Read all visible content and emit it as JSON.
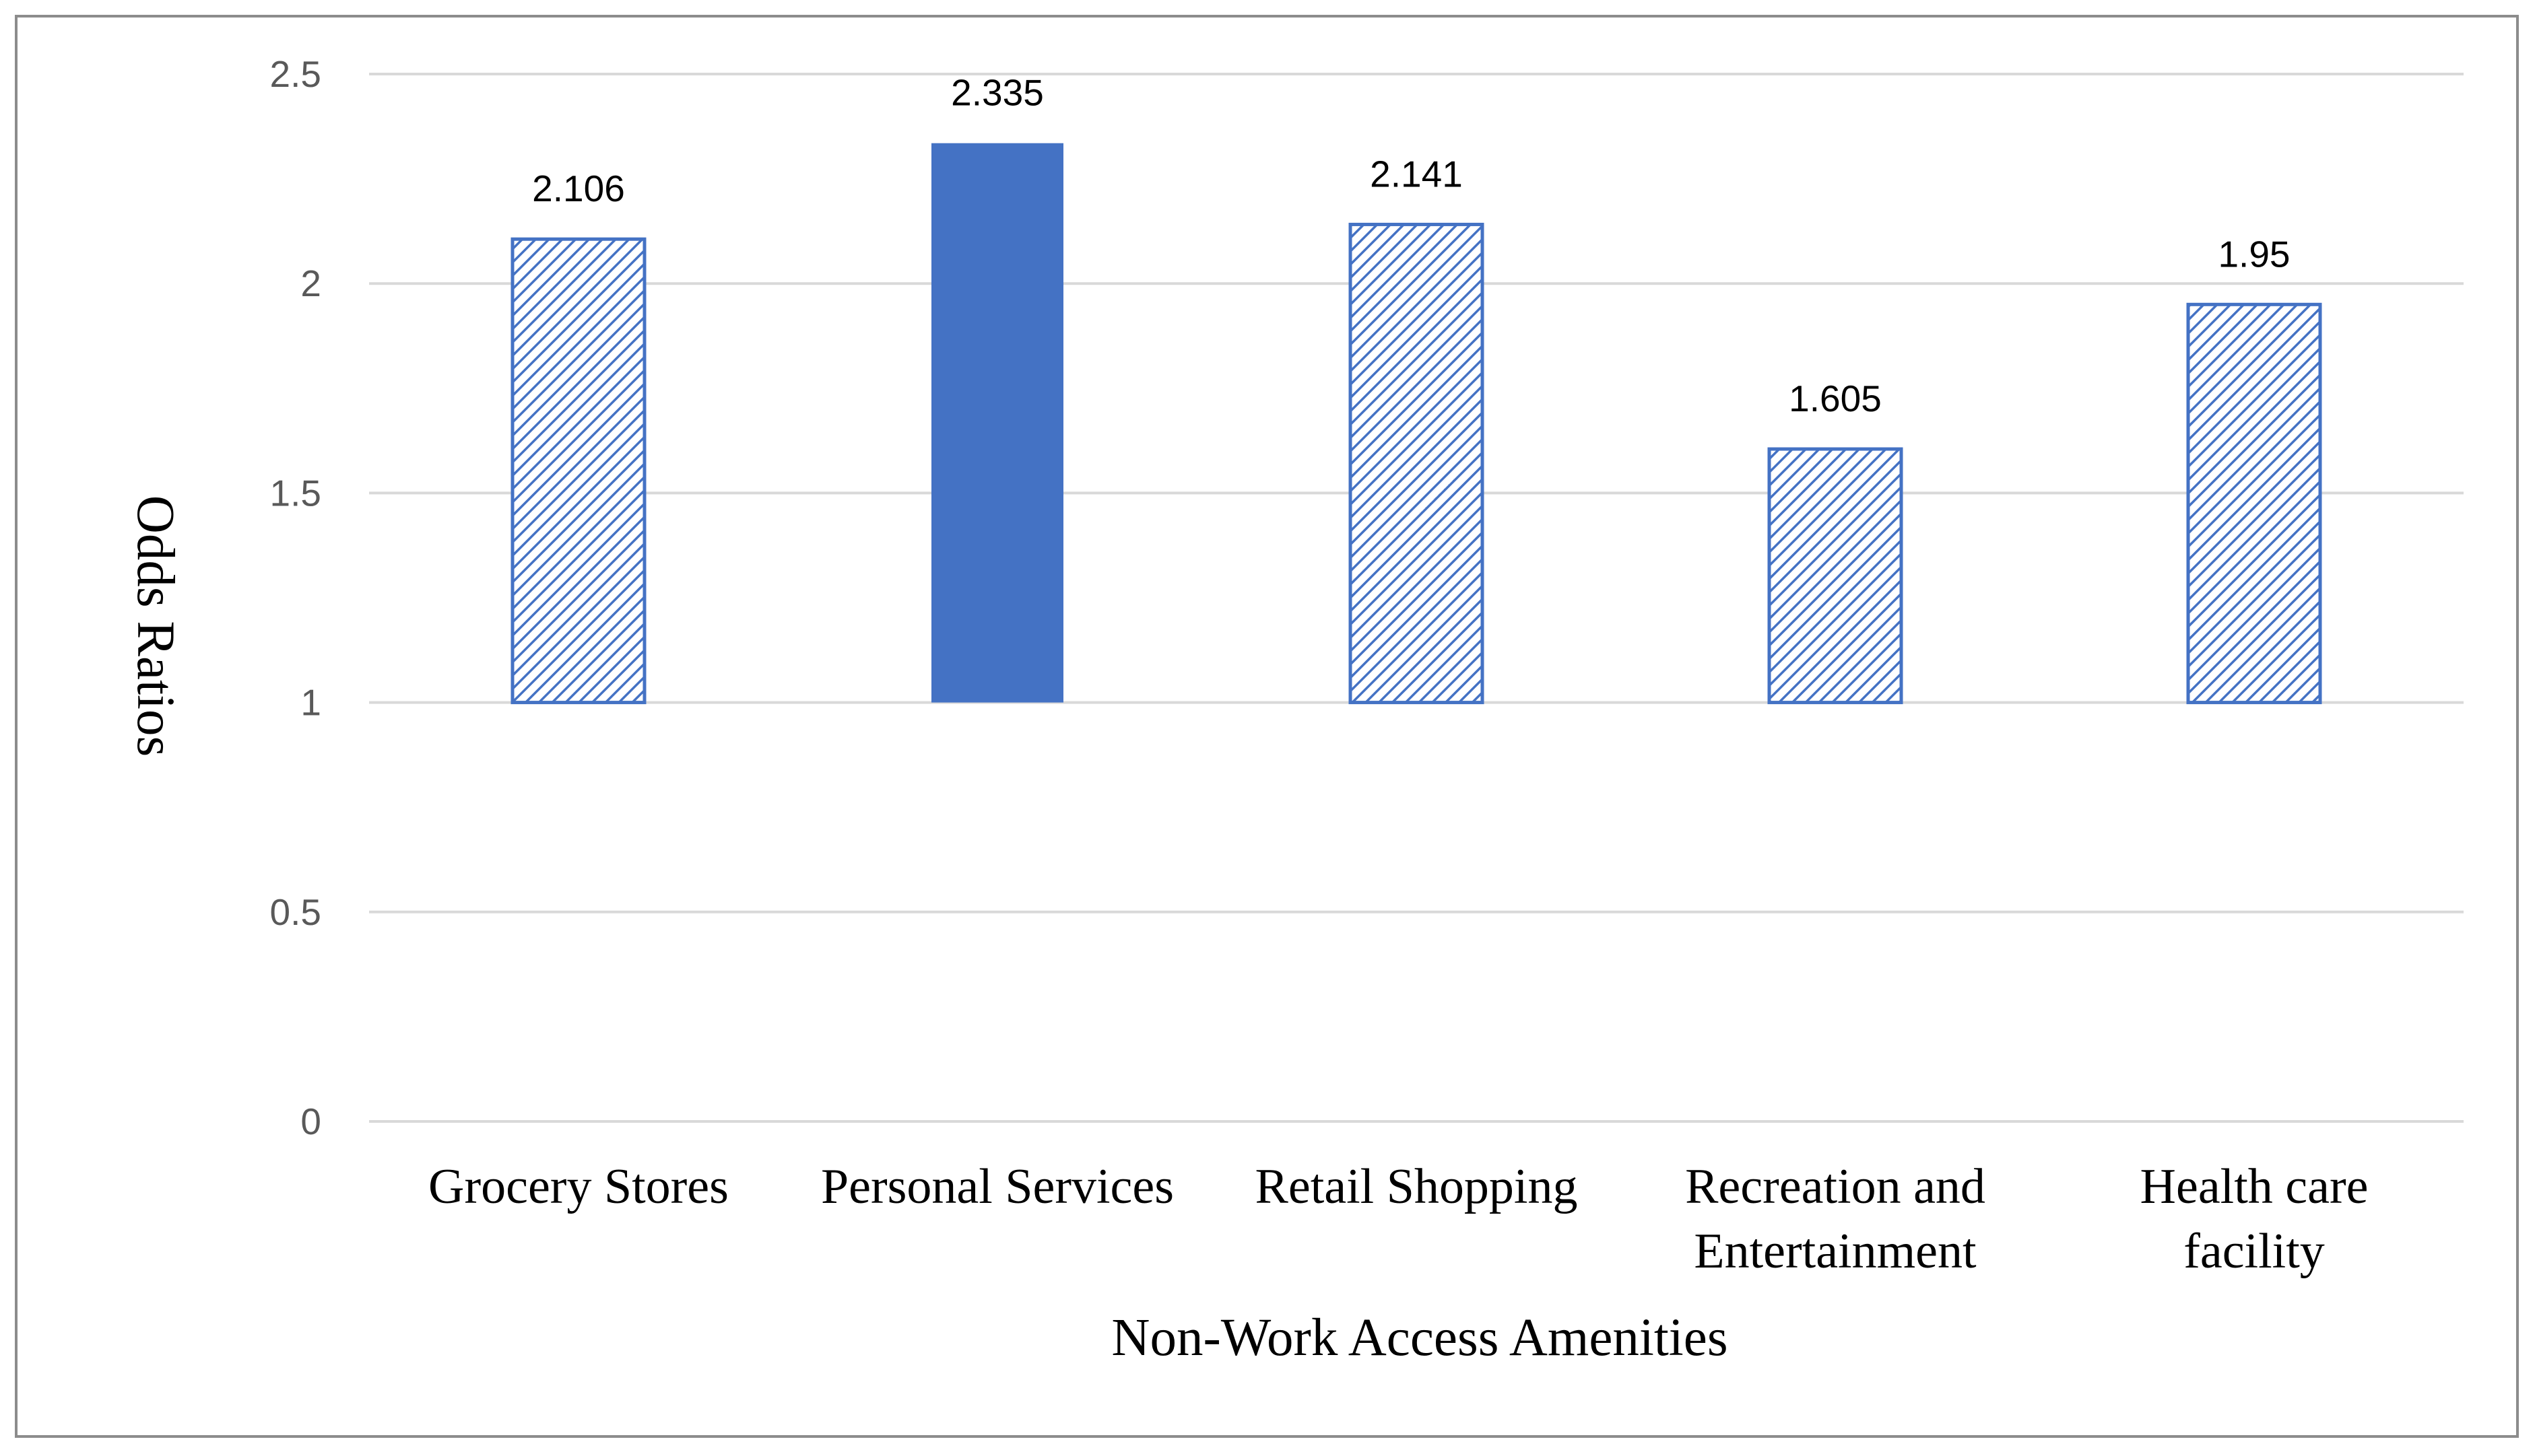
{
  "chart_data": {
    "type": "bar",
    "categories": [
      [
        "Grocery Stores"
      ],
      [
        "Personal Services"
      ],
      [
        "Retail Shopping"
      ],
      [
        "Recreation and",
        "Entertainment"
      ],
      [
        "Health care",
        "facility"
      ]
    ],
    "values": [
      2.106,
      2.335,
      2.141,
      1.605,
      1.95
    ],
    "data_labels": [
      "2.106",
      "2.335",
      "2.141",
      "1.605",
      "1.95"
    ],
    "bar_styles": [
      "hatched",
      "solid",
      "hatched",
      "hatched",
      "hatched"
    ],
    "baseline": 1,
    "ylim": [
      0,
      2.5
    ],
    "yticks": [
      0,
      0.5,
      1,
      1.5,
      2,
      2.5
    ],
    "ytick_labels": [
      "0",
      "0.5",
      "1",
      "1.5",
      "2",
      "2.5"
    ],
    "xlabel": "Non-Work Access Amenities",
    "ylabel": "Odds Ratios",
    "grid": true,
    "colors": {
      "bar": "#4472c4",
      "grid": "#d9d9d9",
      "frame": "#8c8c8c"
    }
  }
}
